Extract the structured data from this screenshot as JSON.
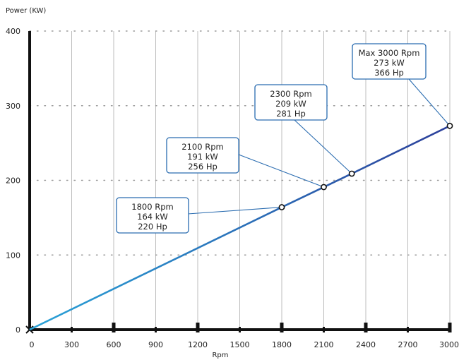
{
  "chart_data": {
    "type": "line",
    "ylabel": "Power (KW)",
    "xlabel": "Rpm",
    "xlim": [
      0,
      3000
    ],
    "ylim": [
      0,
      400
    ],
    "x_ticks": [
      "0",
      "300",
      "600",
      "900",
      "1200",
      "1500",
      "1800",
      "2100",
      "2400",
      "2700",
      "3000"
    ],
    "y_ticks": [
      "0",
      "100",
      "200",
      "300",
      "400"
    ],
    "grid": true,
    "series": [
      {
        "x": [
          0,
          1800,
          2100,
          2300,
          3000
        ],
        "y": [
          0,
          164,
          191,
          209,
          273
        ]
      }
    ],
    "points": [
      {
        "x": 1800,
        "y": 164
      },
      {
        "x": 2100,
        "y": 191
      },
      {
        "x": 2300,
        "y": 209
      },
      {
        "x": 3000,
        "y": 273
      }
    ],
    "annotations": [
      {
        "lines": [
          "1800 Rpm",
          "164 kW",
          "220 Hp"
        ]
      },
      {
        "lines": [
          "2100 Rpm",
          "191 kW",
          "256 Hp"
        ]
      },
      {
        "lines": [
          "2300 Rpm",
          "209 kW",
          "281 Hp"
        ]
      },
      {
        "lines": [
          "Max 3000 Rpm",
          "273 kW",
          "366 Hp"
        ]
      }
    ],
    "colors": {
      "line": "#2f6db8",
      "box_border": "#2a6cb0",
      "axis": "#111111",
      "grid": "#bdbdbd"
    }
  }
}
